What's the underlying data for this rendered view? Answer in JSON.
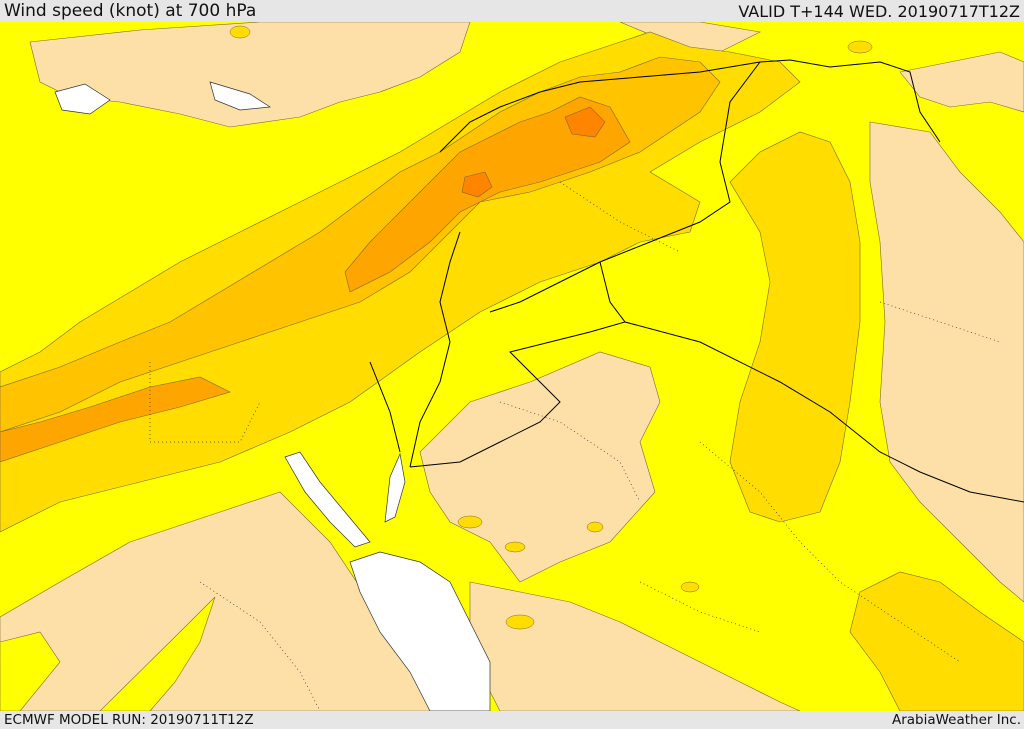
{
  "header": {
    "title": "Wind speed (knot) at 700 hPa",
    "valid": "VALID T+144 WED. 20190717T12Z"
  },
  "footer": {
    "model_run": "ECMWF MODEL RUN: 20190711T12Z",
    "credit": "ArabiaWeather Inc."
  },
  "colors": {
    "background_field": "#ffff00",
    "low_wind": "#fde0a8",
    "moderate_wind": "#ffdd00",
    "strong_wind": "#ffc300",
    "stronger_wind": "#ffa500",
    "strongest_wind": "#ff8400",
    "water_masked": "#ffffff",
    "border_line": "#000000"
  }
}
